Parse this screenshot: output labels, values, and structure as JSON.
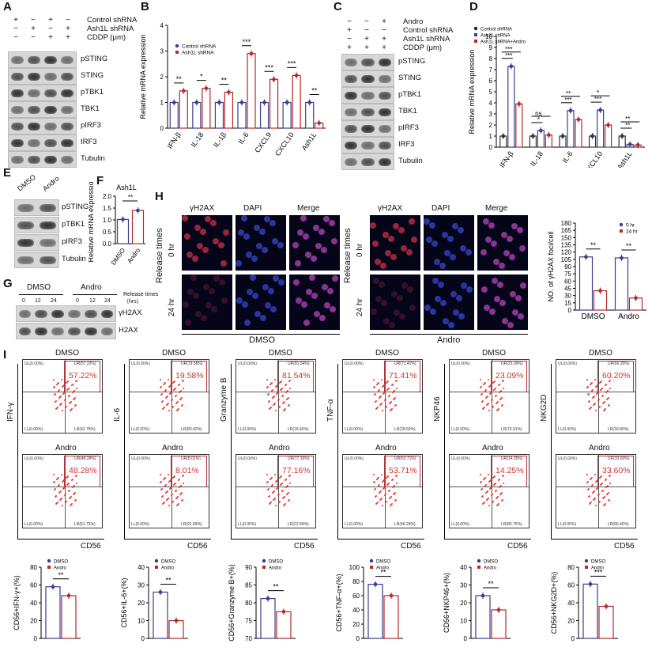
{
  "panels": {
    "A": {
      "label": "A",
      "cond_rows": [
        {
          "label": "Control shRNA",
          "signs": [
            "+",
            "−",
            "+",
            "−"
          ]
        },
        {
          "label": "Ash1L shRNA",
          "signs": [
            "−",
            "+",
            "−",
            "+"
          ]
        },
        {
          "label": "CDDP (μm)",
          "signs": [
            "−",
            "−",
            "+",
            "+"
          ]
        }
      ],
      "blots": [
        "pSTING",
        "STING",
        "pTBK1",
        "TBK1",
        "pIRF3",
        "IRF3",
        "Tubulin"
      ]
    },
    "B": {
      "label": "B"
    },
    "C": {
      "label": "C",
      "cond_rows": [
        {
          "label": "Andro",
          "signs": [
            "−",
            "−",
            "+"
          ]
        },
        {
          "label": "Control shRNA",
          "signs": [
            "+",
            "−",
            "−"
          ]
        },
        {
          "label": "Ash1L shRNA",
          "signs": [
            "−",
            "+",
            "+"
          ]
        },
        {
          "label": "CDDP (μm)",
          "signs": [
            "+",
            "+",
            "+"
          ]
        }
      ],
      "blots": [
        "pSTING",
        "STING",
        "pTBK1",
        "TBK1",
        "pIRF3",
        "IRF3",
        "Tubulin"
      ]
    },
    "D": {
      "label": "D"
    },
    "E": {
      "label": "E",
      "lanes": [
        "DMSO",
        "Andro"
      ],
      "blots": [
        "pSTING",
        "pTBK1",
        "pIRF3",
        "Tubulin"
      ]
    },
    "F": {
      "label": "F"
    },
    "G": {
      "label": "G",
      "groups": [
        "DMSO",
        "Andro"
      ],
      "times": [
        "0",
        "12",
        "24",
        "0",
        "12",
        "24"
      ],
      "times_label": "Release times（hrs）",
      "blots": [
        "γH2AX",
        "H2AX"
      ]
    },
    "H": {
      "label": "H",
      "columns": [
        "γH2AX",
        "DAPI",
        "Merge"
      ],
      "rows": [
        "0 hr",
        "24 hr"
      ],
      "row_axis_label": "Release times",
      "groups": [
        "DMSO",
        "Andro"
      ]
    },
    "I": {
      "label": "I",
      "flow": [
        {
          "y": "IFN-γ",
          "top_title": "DMSO",
          "top_pct": "57.22%",
          "top_ur": "UR(57.22%)",
          "top_lr": "LR(42.78%)",
          "bot_title": "Andro",
          "bot_pct": "48.28%",
          "bot_ur": "UR(48.28%)",
          "bot_lr": "LR(51.72%)"
        },
        {
          "y": "IL-6",
          "top_title": "DMSO",
          "top_pct": "19.58%",
          "top_ur": "UR(19.58%)",
          "top_lr": "LR(80.42%)",
          "bot_title": "Andro",
          "bot_pct": "8.01%",
          "bot_ur": "UR(8.01%)",
          "bot_lr": "LR(91.99%)"
        },
        {
          "y": "Granzyme B",
          "top_title": "DMSO",
          "top_pct": "81.54%",
          "top_ur": "UR(81.54%)",
          "top_lr": "LR(18.46%)",
          "bot_title": "Andro",
          "bot_pct": "77.16%",
          "bot_ur": "UR(77.16%)",
          "bot_lr": "LR(22.84%)"
        },
        {
          "y": "TNF-α",
          "top_title": "DMSO",
          "top_pct": "71.41%",
          "top_ur": "UR(71.41%)",
          "top_lr": "LR(28.59%)",
          "bot_title": "Andro",
          "bot_pct": "53.71%",
          "bot_ur": "UR(53.71%)",
          "bot_lr": "LR(46.29%)"
        },
        {
          "y": "NKP46",
          "top_title": "DMSO",
          "top_pct": "23.09%",
          "top_ur": "UR(23.09%)",
          "top_lr": "LR(76.91%)",
          "bot_title": "Andro",
          "bot_pct": "14.25%",
          "bot_ur": "UR(14.25%)",
          "bot_lr": "LR(85.75%)"
        },
        {
          "y": "NKG2D",
          "top_title": "DMSO",
          "top_pct": "60.20%",
          "top_ur": "UR(60.20%)",
          "top_lr": "LR(39.80%)",
          "bot_title": "Andro",
          "bot_pct": "33.60%",
          "bot_ur": "UR(33.60%)",
          "bot_lr": "LR(66.40%)"
        }
      ],
      "quadrant_ul": "UL(0.00%)",
      "quadrant_ll": "LL(0.00%)",
      "x_axis": "CD56"
    }
  },
  "colors": {
    "blue": "#3b3d8f",
    "red": "#b22a2a",
    "sig": "#000000"
  },
  "chart_data": [
    {
      "type": "bar",
      "panel": "B",
      "categories": [
        "IFN-β",
        "IL-18",
        "IL-1β",
        "IL-6",
        "CXCL9",
        "CXCL10",
        "Ash1L"
      ],
      "series": [
        {
          "name": "Control shRNA",
          "values": [
            1,
            1,
            1,
            1,
            1,
            1,
            1
          ]
        },
        {
          "name": "Ash1L shRNA",
          "values": [
            1.45,
            1.55,
            1.4,
            2.9,
            1.9,
            2.05,
            0.2
          ]
        }
      ],
      "significance": [
        "**",
        "*",
        "**",
        "***",
        "***",
        "***",
        "**"
      ],
      "ylabel": "Relative mRNA expression",
      "yticks": [
        "0",
        "1",
        "2",
        "3",
        "4"
      ],
      "ylim": [
        0,
        4
      ]
    },
    {
      "type": "bar",
      "panel": "D",
      "categories": [
        "IFN-β",
        "IL-18",
        "IL-6",
        "CXCL10",
        "Ash1L"
      ],
      "series": [
        {
          "name": "Control shRNA",
          "values": [
            1,
            1,
            1,
            1,
            1
          ]
        },
        {
          "name": "Ash1L shRNA",
          "values": [
            7.3,
            1.5,
            3.3,
            3.35,
            0.25
          ]
        },
        {
          "name": "Ash1L shRNA+Andro",
          "values": [
            3.9,
            1.1,
            2.5,
            2.0,
            0.2
          ]
        }
      ],
      "significance": [
        [
          "***",
          "***"
        ],
        [
          "*",
          "ns"
        ],
        [
          "***",
          "**"
        ],
        [
          "***",
          "*"
        ],
        [
          "**",
          "**"
        ]
      ],
      "ylabel": "Relative mRNA expression",
      "yticks": [
        "0",
        "1",
        "2",
        "3",
        "4",
        "5",
        "6",
        "7",
        "8",
        "9",
        "10"
      ],
      "ylim": [
        0,
        10
      ]
    },
    {
      "type": "bar",
      "panel": "F",
      "title": "Ash1L",
      "categories": [
        "DMSO",
        "Andro"
      ],
      "values": [
        1.02,
        1.4
      ],
      "significance": "**",
      "ylabel": "Relative mRNA expression",
      "yticks": [
        "0.0",
        "0.5",
        "1.0",
        "1.5",
        "2.0"
      ],
      "ylim": [
        0,
        2
      ]
    },
    {
      "type": "bar",
      "panel": "H",
      "categories": [
        "DMSO",
        "Andro"
      ],
      "series": [
        {
          "name": "0 hr",
          "values": [
            110,
            108
          ]
        },
        {
          "name": "24 hr",
          "values": [
            40,
            25
          ]
        }
      ],
      "significance": [
        "**",
        "**"
      ],
      "ylabel": "NO. of γH2AX foci/cell",
      "yticks": [
        "0",
        "15",
        "30",
        "45",
        "60",
        "75",
        "90",
        "105",
        "120",
        "135",
        "150",
        "165",
        "180"
      ],
      "ylim": [
        0,
        180
      ]
    },
    {
      "type": "bar",
      "panel": "I",
      "charts": [
        {
          "ylabel": "CD56+IFN-γ+(%)",
          "yticks": [
            "0",
            "20",
            "40",
            "60",
            "80"
          ],
          "ylim": [
            0,
            80
          ],
          "values": [
            58,
            48
          ],
          "significance": "**"
        },
        {
          "ylabel": "CD56+IL-6+(%)",
          "yticks": [
            "0",
            "10",
            "20",
            "30",
            "40"
          ],
          "ylim": [
            0,
            40
          ],
          "values": [
            26,
            10
          ],
          "significance": "**"
        },
        {
          "ylabel": "CD56+Granzyme B+(%)",
          "yticks": [
            "70",
            "75",
            "80",
            "85",
            "90"
          ],
          "ylim": [
            70,
            90
          ],
          "values": [
            81.2,
            77.5
          ],
          "significance": "**"
        },
        {
          "ylabel": "CD56+TNF-α+(%)",
          "yticks": [
            "0",
            "20",
            "40",
            "60",
            "80",
            "100"
          ],
          "ylim": [
            0,
            100
          ],
          "values": [
            76,
            60
          ],
          "significance": "**"
        },
        {
          "ylabel": "CD56+NKP46+(%)",
          "yticks": [
            "0",
            "10",
            "20",
            "30",
            "40"
          ],
          "ylim": [
            0,
            40
          ],
          "values": [
            24,
            16
          ],
          "significance": "**"
        },
        {
          "ylabel": "CD56+NKG2D+(%)",
          "yticks": [
            "0",
            "20",
            "40",
            "60",
            "80"
          ],
          "ylim": [
            0,
            80
          ],
          "values": [
            61,
            36
          ],
          "significance": "***"
        }
      ],
      "series": [
        {
          "name": "DMSO"
        },
        {
          "name": "Andro"
        }
      ]
    }
  ]
}
